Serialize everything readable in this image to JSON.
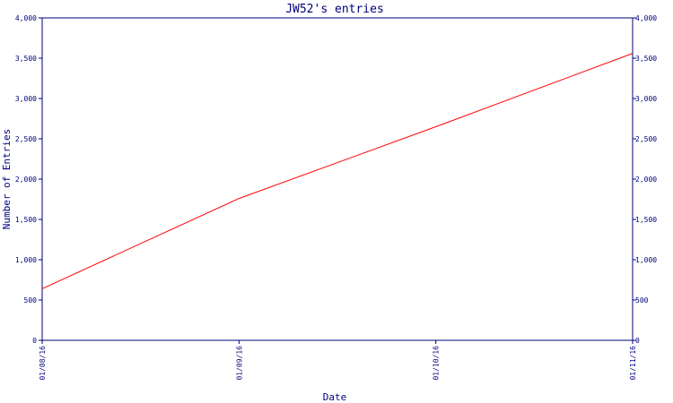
{
  "chart_data": {
    "type": "line",
    "title": "JW52's entries",
    "xlabel": "Date",
    "ylabel": "Number of Entries",
    "x_tick_labels": [
      "01/08/16",
      "01/09/16",
      "01/10/16",
      "01/11/16"
    ],
    "y_tick_labels": [
      "0",
      "500",
      "1,000",
      "1,500",
      "2,000",
      "2,500",
      "3,000",
      "3,500",
      "4,000"
    ],
    "y_ticks": [
      0,
      500,
      1000,
      1500,
      2000,
      2500,
      3000,
      3500,
      4000
    ],
    "ylim": [
      0,
      4000
    ],
    "xlim": [
      "2016-01-08",
      "2016-01-11"
    ],
    "series": [
      {
        "color": "#ff0000",
        "x": [
          "2016-01-08",
          "2016-01-09",
          "2016-01-10",
          "2016-01-11"
        ],
        "values": [
          640,
          1760,
          2650,
          3560
        ]
      }
    ],
    "grid": false,
    "right_axis": true,
    "axis_color": "#00007a"
  }
}
